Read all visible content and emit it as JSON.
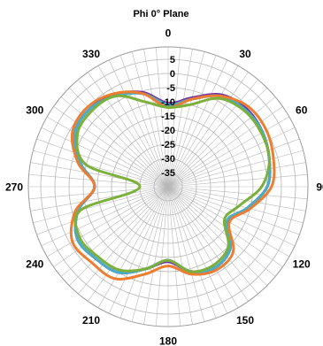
{
  "chart_data": {
    "type": "radar",
    "title": "Phi 0° Plane",
    "theta_ticks": [
      "0",
      "30",
      "60",
      "90",
      "120",
      "150",
      "180",
      "210",
      "240",
      "270",
      "300",
      "330"
    ],
    "r_ticks": [
      "5",
      "0",
      "-5",
      "-10",
      "-15",
      "-20",
      "-25",
      "-30",
      "-35"
    ],
    "r_range": [
      -40,
      5
    ],
    "angles_deg": [
      0,
      15,
      30,
      45,
      60,
      75,
      90,
      105,
      120,
      135,
      150,
      165,
      180,
      195,
      210,
      225,
      240,
      255,
      270,
      285,
      300,
      315,
      330,
      345
    ],
    "grid": true,
    "series": [
      {
        "color": "#2e75b6",
        "values": [
          -11,
          -8,
          -3,
          -1,
          -1.5,
          -3,
          -5,
          -11,
          -16,
          -9,
          -7,
          -9,
          -14,
          -10,
          -5,
          -4,
          -3,
          -7,
          -14,
          -8,
          -2,
          -1,
          -2.5,
          -6
        ]
      },
      {
        "color": "#70309f",
        "values": [
          -10.5,
          -7.5,
          -2.5,
          -1,
          -1.5,
          -3,
          -5,
          -11,
          -15.5,
          -9,
          -7,
          -9,
          -13.5,
          -10,
          -5,
          -4,
          -3,
          -7,
          -14,
          -8,
          -2,
          -1,
          -2.5,
          -5.5
        ]
      },
      {
        "color": "#4bacc6",
        "values": [
          -11,
          -8,
          -3,
          -1.5,
          -1.5,
          -3,
          -5,
          -11,
          -16,
          -9,
          -7,
          -9,
          -14,
          -10,
          -5,
          -4,
          -3,
          -7,
          -14,
          -8,
          -2,
          -1,
          -3,
          -6
        ]
      },
      {
        "color": "#ed7d31",
        "values": [
          -12,
          -8,
          -3,
          0,
          0,
          -1.5,
          -3.5,
          -10,
          -15,
          -7.5,
          -6,
          -8,
          -12,
          -8,
          -2.5,
          -2,
          -1,
          -6,
          -14,
          -7,
          -1,
          0,
          -2,
          -6
        ]
      },
      {
        "color": "#7bb03c",
        "values": [
          -12,
          -10,
          -4,
          -2,
          -2,
          -3,
          -7,
          -14,
          -17,
          -10,
          -8,
          -9,
          -14,
          -10,
          -6,
          -5,
          -4,
          -8,
          -30,
          -10,
          -3,
          -2,
          -3,
          -9
        ]
      }
    ]
  }
}
